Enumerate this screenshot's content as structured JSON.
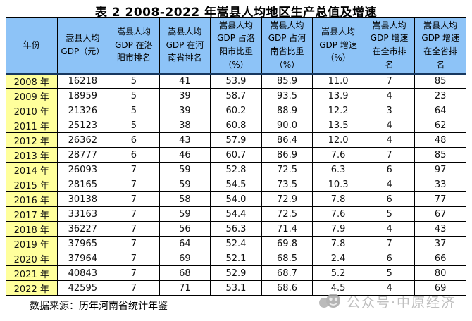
{
  "title": "表 2 2008-2022 年嵩县人均地区生产总值及增速",
  "footer": {
    "source": "数据来源：历年河南省统计年鉴"
  },
  "watermark": {
    "text": "公众号·中原经济",
    "icon": "public-account-logo-icon"
  },
  "colors": {
    "header_bg": "#8DC3F7",
    "year_column_bg": "#FFFF9C",
    "border": "#000000",
    "header_divider": "#17375E",
    "watermark_gray": "#b4b4b4"
  },
  "chart_data": {
    "type": "table",
    "title": "表 2 2008-2022 年嵩县人均地区生产总值及增速",
    "columns": [
      "年份",
      "嵩县人均\nGDP（元）",
      "嵩县人均\nGDP 在洛\n阳市排名",
      "嵩县人均\nGDP 在河\n南省排名",
      "嵩县人均\nGDP 占洛\n阳市比重\n（%）",
      "嵩县人均\nGDP 占河\n南省比重\n（%）",
      "嵩县人均\nGDP 增速\n（%）",
      "嵩县人均\nGDP 增速\n在全市排\n名",
      "嵩县人均\nGDP 增速\n在全省排\n名"
    ],
    "rows": [
      [
        "2008 年",
        "16218",
        "5",
        "41",
        "53.9",
        "85.9",
        "11.0",
        "7",
        "85"
      ],
      [
        "2009 年",
        "18959",
        "5",
        "39",
        "58.7",
        "93.5",
        "13.9",
        "4",
        "23"
      ],
      [
        "2010 年",
        "21326",
        "5",
        "39",
        "60.2",
        "88.9",
        "12.2",
        "3",
        "64"
      ],
      [
        "2011 年",
        "25123",
        "5",
        "38",
        "60.8",
        "90.0",
        "13.5",
        "4",
        "62"
      ],
      [
        "2012 年",
        "26362",
        "6",
        "43",
        "57.9",
        "86.4",
        "12.0",
        "4",
        "48"
      ],
      [
        "2013 年",
        "28777",
        "6",
        "46",
        "60.7",
        "86.9",
        "7.6",
        "7",
        "85"
      ],
      [
        "2014 年",
        "26093",
        "7",
        "59",
        "52.8",
        "72.5",
        "6.3",
        "6",
        "97"
      ],
      [
        "2015 年",
        "28165",
        "7",
        "59",
        "54.5",
        "73.5",
        "10.3",
        "4",
        "33"
      ],
      [
        "2016 年",
        "30138",
        "7",
        "58",
        "54.0",
        "72.9",
        "7.8",
        "6",
        "77"
      ],
      [
        "2017 年",
        "33163",
        "7",
        "59",
        "54.4",
        "72.5",
        "7.6",
        "5",
        "67"
      ],
      [
        "2018 年",
        "36227",
        "7",
        "56",
        "56.3",
        "71.4",
        "7.9",
        "4",
        "43"
      ],
      [
        "2019 年",
        "37965",
        "7",
        "64",
        "52.4",
        "69.8",
        "7.8",
        "7",
        "37"
      ],
      [
        "2020 年",
        "37964",
        "7",
        "69",
        "52.1",
        "68.5",
        "2.4",
        "6",
        "66"
      ],
      [
        "2021 年",
        "40843",
        "7",
        "68",
        "52.9",
        "68.7",
        "5.2",
        "5",
        "80"
      ],
      [
        "2022 年",
        "42595",
        "7",
        "71",
        "53.1",
        "68.6",
        "4.5",
        "4",
        "69"
      ]
    ]
  }
}
